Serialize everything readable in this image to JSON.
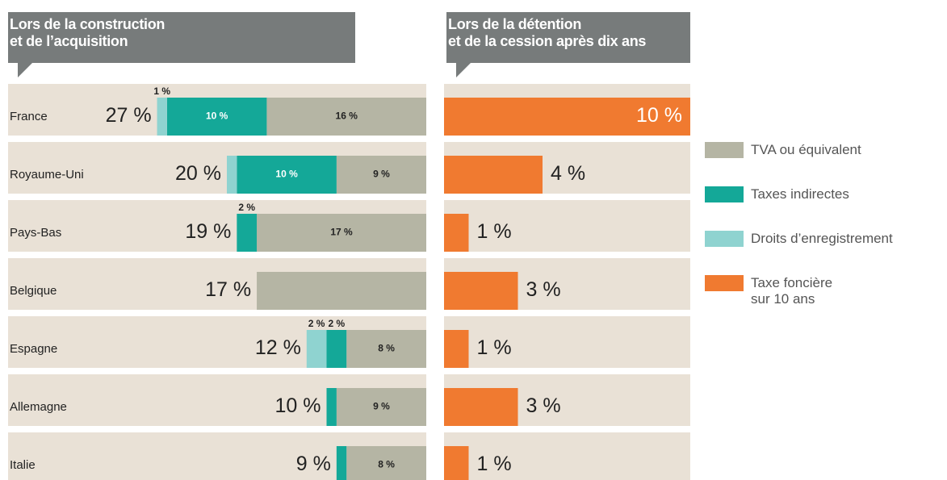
{
  "chart_data": [
    {
      "type": "bar",
      "orientation": "horizontal",
      "stacked": true,
      "title": "Lors de la construction\net de l’acquisition",
      "categories": [
        "France",
        "Royaume-Uni",
        "Pays-Bas",
        "Belgique",
        "Espagne",
        "Allemagne",
        "Italie"
      ],
      "series": [
        {
          "name": "TVA ou équivalent",
          "color": "#b5b5a4",
          "values": [
            16,
            9,
            17,
            17,
            8,
            9,
            8
          ],
          "value_labels": [
            "16 %",
            "9 %",
            "17 %",
            null,
            "8 %",
            "9 %",
            "8 %"
          ]
        },
        {
          "name": "Taxes indirectes",
          "color": "#14a898",
          "values": [
            10,
            10,
            2,
            0,
            2,
            1,
            1
          ],
          "value_labels": [
            "10 %",
            "10 %",
            "2 %",
            null,
            "2 %",
            null,
            null
          ]
        },
        {
          "name": "Droits d’enregistrement",
          "color": "#8fd3d0",
          "values": [
            1,
            1,
            0,
            0,
            2,
            0,
            0
          ],
          "value_labels": [
            "1 %",
            null,
            null,
            null,
            "2 %",
            null,
            null
          ]
        }
      ],
      "totals": [
        27,
        20,
        19,
        17,
        12,
        10,
        9
      ],
      "total_labels": [
        "27 %",
        "20 %",
        "19 %",
        "17 %",
        "12 %",
        "10 %",
        "9 %"
      ]
    },
    {
      "type": "bar",
      "orientation": "horizontal",
      "title": "Lors de la détention\net de la cession après dix ans",
      "series": [
        {
          "name": "Taxe foncière\nsur 10 ans",
          "color": "#f07a30",
          "values": [
            10,
            4,
            1,
            3,
            1,
            3,
            1
          ],
          "value_labels": [
            "10 %",
            "4 %",
            "1 %",
            "3 %",
            "1 %",
            "3 %",
            "1 %"
          ]
        }
      ]
    }
  ]
}
